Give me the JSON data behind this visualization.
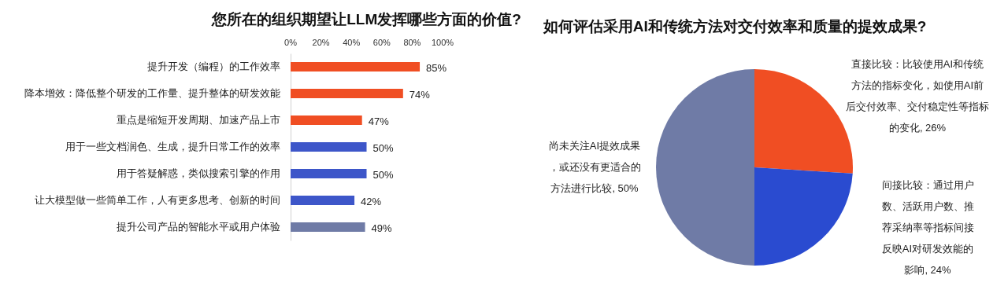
{
  "chart_data": [
    {
      "type": "bar",
      "title": "您所在的组织期望让LLM发挥哪些方面的价值?",
      "orientation": "horizontal",
      "categories": [
        "提升开发（编程）的工作效率",
        "降本增效：降低整个研发的工作量、提升整体的研发效能",
        "重点是缩短开发周期、加速产品上市",
        "用于一些文档润色、生成，提升日常工作的效率",
        "用于答疑解惑，类似搜索引擎的作用",
        "让大模型做一些简单工作，人有更多思考、创新的时间",
        "提升公司产品的智能水平或用户体验"
      ],
      "values": [
        85,
        74,
        47,
        50,
        50,
        42,
        49
      ],
      "colors": [
        "#f04e23",
        "#f04e23",
        "#f04e23",
        "#3d56c9",
        "#3d56c9",
        "#3d56c9",
        "#6f7ba6"
      ],
      "value_labels": [
        "85%",
        "74%",
        "47%",
        "50%",
        "50%",
        "42%",
        "49%"
      ],
      "xlim": [
        0,
        100
      ],
      "xticks": [
        {
          "value": 0,
          "label": "0%"
        },
        {
          "value": 20,
          "label": "20%"
        },
        {
          "value": 40,
          "label": "40%"
        },
        {
          "value": 60,
          "label": "60%"
        },
        {
          "value": 80,
          "label": "80%"
        },
        {
          "value": 100,
          "label": "100%"
        }
      ]
    },
    {
      "type": "pie",
      "title": "如何评估采用AI和传统方法对交付效率和质量的提效成果?",
      "categories": [
        "直接比较：比较使用AI和传统方法的指标变化，如使用AI前后交付效率、交付稳定性等指标的变化, 26%",
        "间接比较：通过用户数、活跃用户数、推荐采纳率等指标间接反映AI对研发效能的影响, 24%",
        "尚未关注AI提效成果，或还没有更适合的方法进行比较, 50%"
      ],
      "values": [
        26,
        24,
        50
      ],
      "colors": [
        "#f04e23",
        "#2a4bd0",
        "#6f7ba6"
      ]
    }
  ]
}
